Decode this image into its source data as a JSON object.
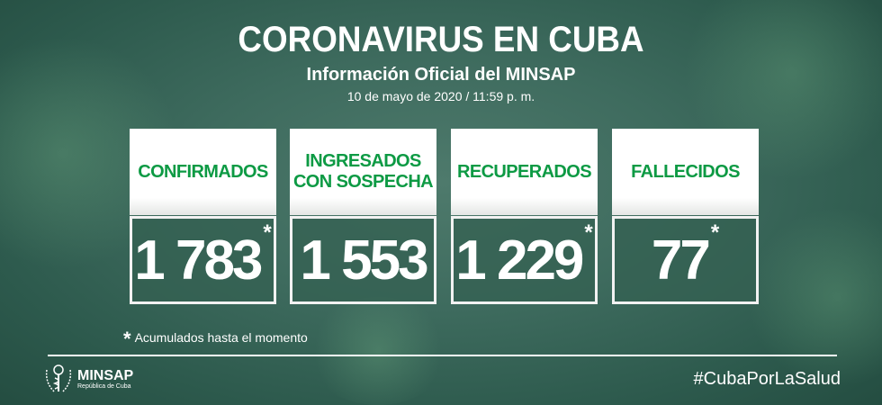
{
  "header": {
    "title": "CORONAVIRUS EN CUBA",
    "subtitle": "Información Oficial del MINSAP",
    "date": "10 de mayo de 2020 / 11:59 p. m."
  },
  "cards": [
    {
      "label": "CONFIRMADOS",
      "value": "1 783",
      "asterisk": "*"
    },
    {
      "label": "INGRESADOS CON SOSPECHA",
      "value": "1 553"
    },
    {
      "label": "RECUPERADOS",
      "value": "1 229",
      "asterisk": "*"
    },
    {
      "label": "FALLECIDOS",
      "value": "77",
      "asterisk": "*"
    }
  ],
  "footnote": {
    "mark": "*",
    "text": "Acumulados hasta el momento"
  },
  "footer": {
    "logo_name": "MINSAP",
    "logo_sub": "República de Cuba",
    "hashtag": "#CubaPorLaSalud"
  },
  "colors": {
    "accent": "#0d9a44",
    "background": "#3e6b5e"
  }
}
